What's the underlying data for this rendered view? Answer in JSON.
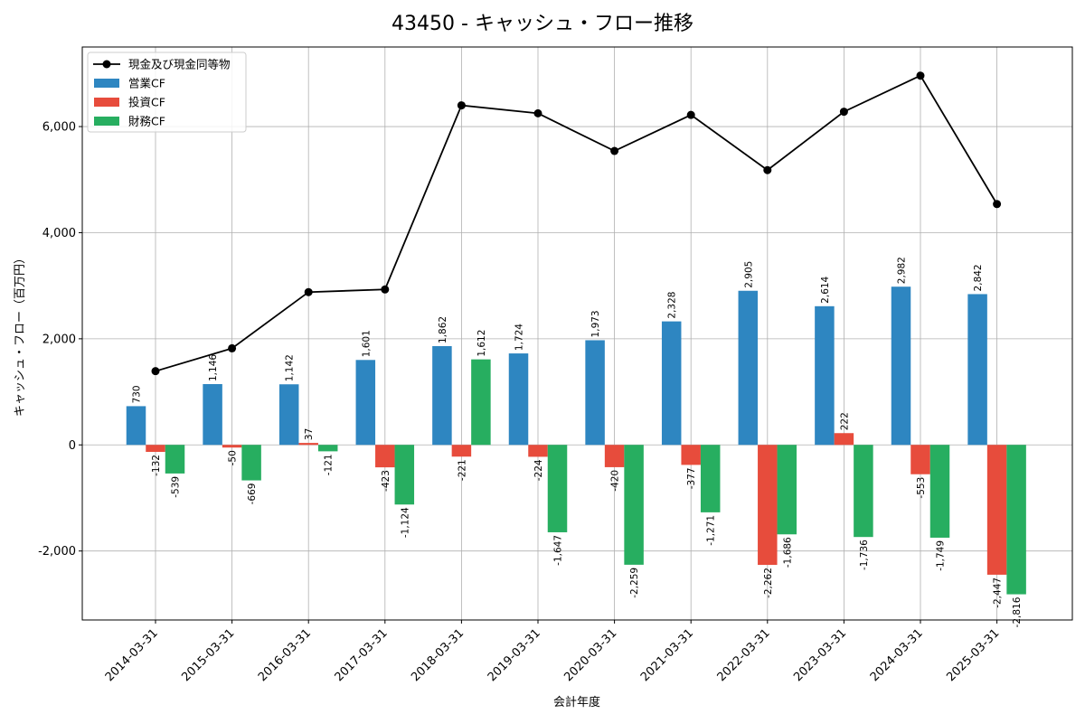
{
  "chart_data": {
    "type": "bar",
    "title": "43450 - キャッシュ・フロー推移",
    "xlabel": "会計年度",
    "ylabel": "キャッシュ・フロー（百万円）",
    "ylim": [
      -3300,
      7500
    ],
    "yticks": [
      -2000,
      0,
      2000,
      4000,
      6000
    ],
    "ytick_labels": [
      "-2,000",
      "0",
      "2,000",
      "4,000",
      "6,000"
    ],
    "grid": true,
    "legend_position": "top-left",
    "categories": [
      "2014-03-31",
      "2015-03-31",
      "2016-03-31",
      "2017-03-31",
      "2018-03-31",
      "2019-03-31",
      "2020-03-31",
      "2021-03-31",
      "2022-03-31",
      "2023-03-31",
      "2024-03-31",
      "2025-03-31"
    ],
    "series": [
      {
        "name": "営業CF",
        "kind": "bar",
        "color": "#2e86c1",
        "values": [
          730,
          1146,
          1142,
          1601,
          1862,
          1724,
          1973,
          2328,
          2905,
          2614,
          2982,
          2842
        ],
        "labels": [
          "730",
          "1,146",
          "1,142",
          "1,601",
          "1,862",
          "1,724",
          "1,973",
          "2,328",
          "2,905",
          "2,614",
          "2,982",
          "2,842"
        ]
      },
      {
        "name": "投資CF",
        "kind": "bar",
        "color": "#e74c3c",
        "values": [
          -132,
          -50,
          37,
          -423,
          -221,
          -224,
          -420,
          -377,
          -2262,
          222,
          -553,
          -2447
        ],
        "labels": [
          "-132",
          "-50",
          "37",
          "-423",
          "-221",
          "-224",
          "-420",
          "-377",
          "-2,262",
          "222",
          "-553",
          "-2,447"
        ]
      },
      {
        "name": "財務CF",
        "kind": "bar",
        "color": "#27ae60",
        "values": [
          -539,
          -669,
          -121,
          -1124,
          1612,
          -1647,
          -2259,
          -1271,
          -1686,
          -1736,
          -1749,
          -2816
        ],
        "labels": [
          "-539",
          "-669",
          "-121",
          "-1,124",
          "1,612",
          "-1,647",
          "-2,259",
          "-1,271",
          "-1,686",
          "-1,736",
          "-1,749",
          "-2,816"
        ]
      },
      {
        "name": "現金及び現金同等物",
        "kind": "line",
        "color": "#000000",
        "values": [
          1390,
          1820,
          2880,
          2930,
          6400,
          6250,
          5540,
          6220,
          5180,
          6280,
          6960,
          4540
        ]
      }
    ]
  }
}
